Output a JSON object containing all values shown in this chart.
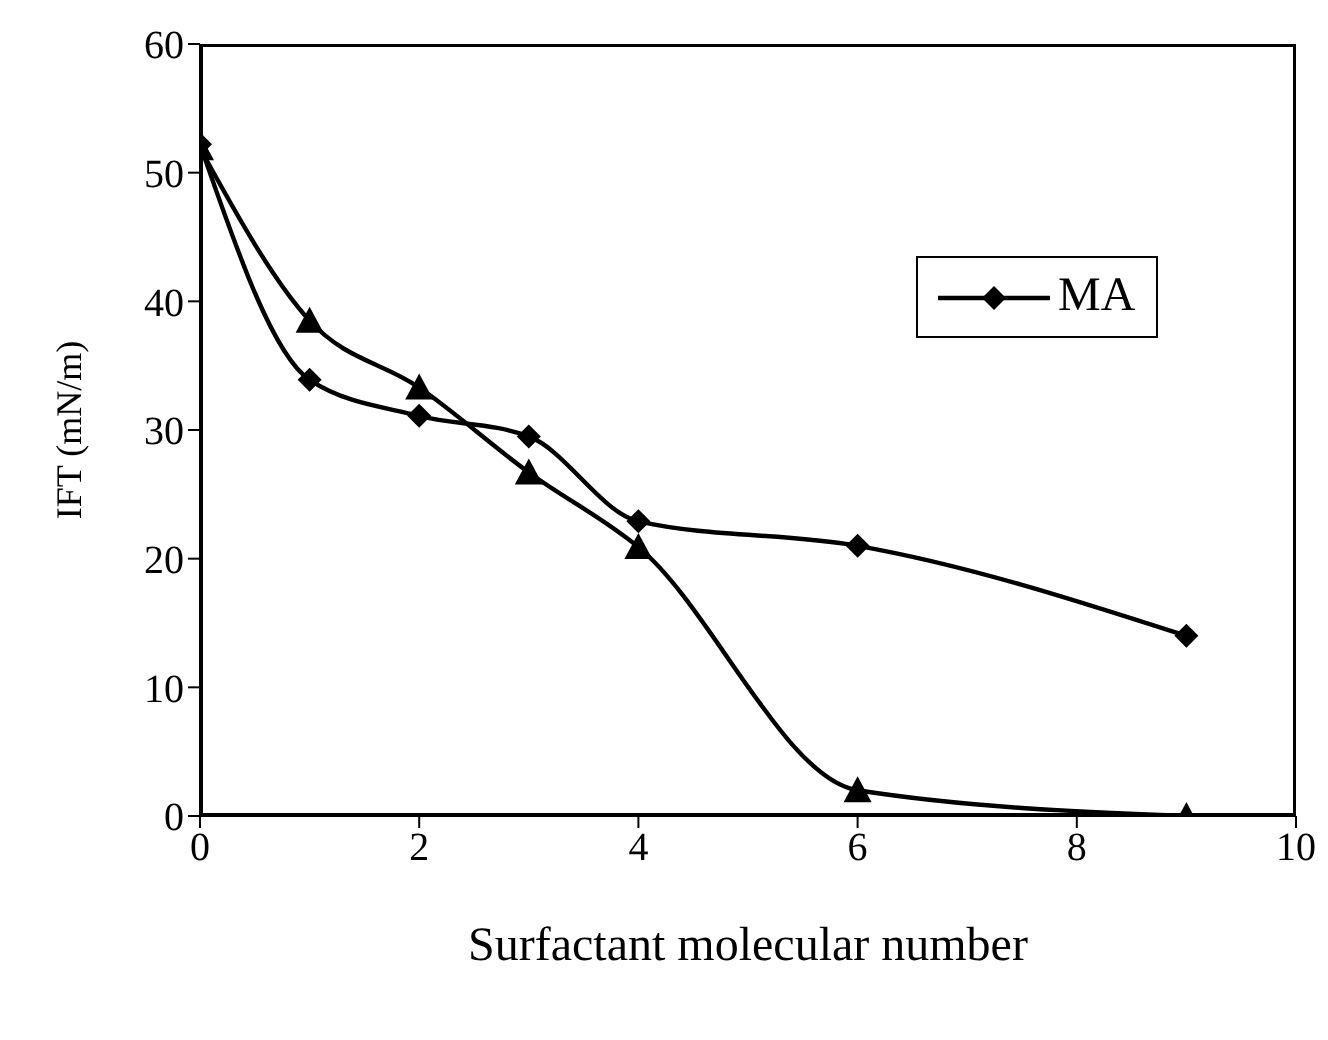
{
  "chart_data": {
    "type": "line",
    "xlabel": "Surfactant molecular number",
    "ylabel": "IFT (mN/m)",
    "x": [
      0,
      1,
      2,
      3,
      4,
      6,
      9
    ],
    "series": [
      {
        "name": "MA",
        "color": "#000000",
        "marker": "diamond",
        "values": [
          52.2,
          33.9,
          31.1,
          29.5,
          22.9,
          21.0,
          14.0
        ]
      },
      {
        "color": "#000000",
        "marker": "triangle",
        "values": [
          51.9,
          38.5,
          33.3,
          26.7,
          20.9,
          2.0,
          0
        ]
      }
    ],
    "xlim": [
      0,
      10
    ],
    "xticks": [
      0,
      2,
      4,
      6,
      8,
      10
    ],
    "ylim": [
      0,
      60
    ],
    "yticks": [
      0,
      10,
      20,
      30,
      40,
      50,
      60
    ],
    "legend": "top right",
    "line_style": "solid"
  }
}
